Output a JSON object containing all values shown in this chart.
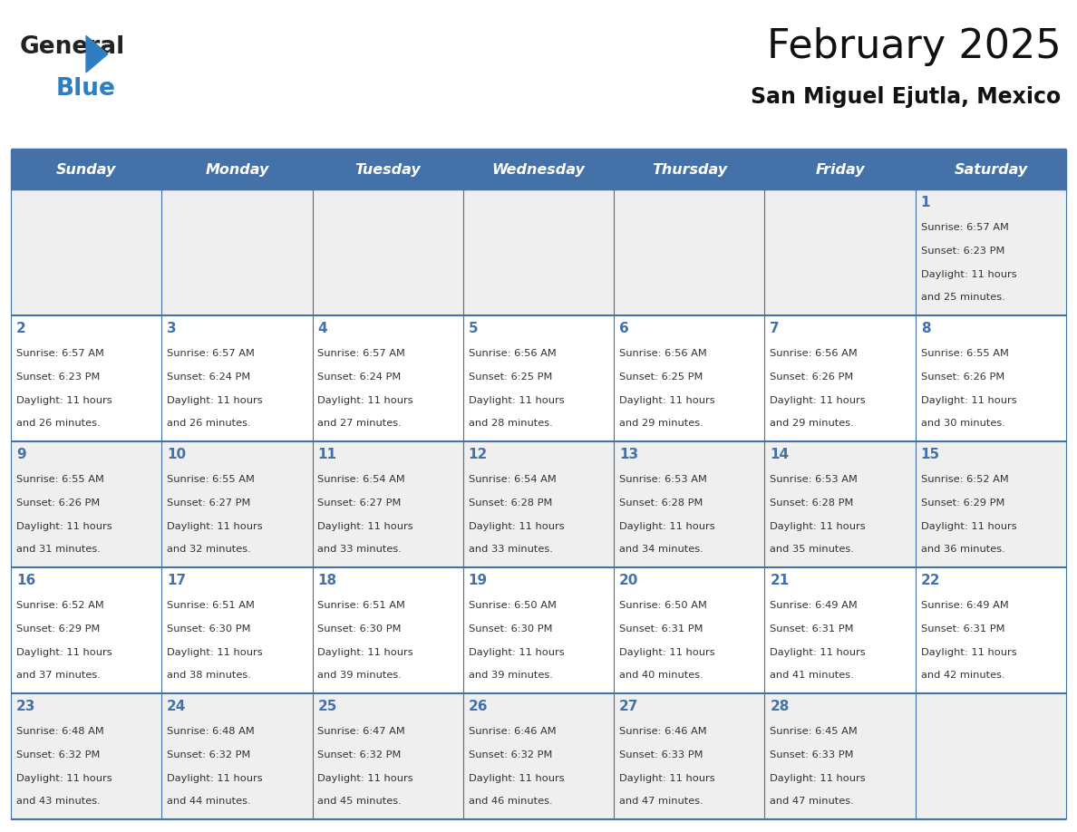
{
  "title": "February 2025",
  "subtitle": "San Miguel Ejutla, Mexico",
  "header_color": "#4472a8",
  "header_text_color": "#ffffff",
  "day_names": [
    "Sunday",
    "Monday",
    "Tuesday",
    "Wednesday",
    "Thursday",
    "Friday",
    "Saturday"
  ],
  "bg_color": "#ffffff",
  "cell_bg_even": "#efefef",
  "cell_bg_odd": "#ffffff",
  "border_color": "#4472a8",
  "number_color": "#4472a8",
  "text_color": "#333333",
  "days": [
    {
      "day": 1,
      "col": 6,
      "row": 0,
      "sunrise": "6:57 AM",
      "sunset": "6:23 PM",
      "daylight": "11 hours and 25 minutes."
    },
    {
      "day": 2,
      "col": 0,
      "row": 1,
      "sunrise": "6:57 AM",
      "sunset": "6:23 PM",
      "daylight": "11 hours and 26 minutes."
    },
    {
      "day": 3,
      "col": 1,
      "row": 1,
      "sunrise": "6:57 AM",
      "sunset": "6:24 PM",
      "daylight": "11 hours and 26 minutes."
    },
    {
      "day": 4,
      "col": 2,
      "row": 1,
      "sunrise": "6:57 AM",
      "sunset": "6:24 PM",
      "daylight": "11 hours and 27 minutes."
    },
    {
      "day": 5,
      "col": 3,
      "row": 1,
      "sunrise": "6:56 AM",
      "sunset": "6:25 PM",
      "daylight": "11 hours and 28 minutes."
    },
    {
      "day": 6,
      "col": 4,
      "row": 1,
      "sunrise": "6:56 AM",
      "sunset": "6:25 PM",
      "daylight": "11 hours and 29 minutes."
    },
    {
      "day": 7,
      "col": 5,
      "row": 1,
      "sunrise": "6:56 AM",
      "sunset": "6:26 PM",
      "daylight": "11 hours and 29 minutes."
    },
    {
      "day": 8,
      "col": 6,
      "row": 1,
      "sunrise": "6:55 AM",
      "sunset": "6:26 PM",
      "daylight": "11 hours and 30 minutes."
    },
    {
      "day": 9,
      "col": 0,
      "row": 2,
      "sunrise": "6:55 AM",
      "sunset": "6:26 PM",
      "daylight": "11 hours and 31 minutes."
    },
    {
      "day": 10,
      "col": 1,
      "row": 2,
      "sunrise": "6:55 AM",
      "sunset": "6:27 PM",
      "daylight": "11 hours and 32 minutes."
    },
    {
      "day": 11,
      "col": 2,
      "row": 2,
      "sunrise": "6:54 AM",
      "sunset": "6:27 PM",
      "daylight": "11 hours and 33 minutes."
    },
    {
      "day": 12,
      "col": 3,
      "row": 2,
      "sunrise": "6:54 AM",
      "sunset": "6:28 PM",
      "daylight": "11 hours and 33 minutes."
    },
    {
      "day": 13,
      "col": 4,
      "row": 2,
      "sunrise": "6:53 AM",
      "sunset": "6:28 PM",
      "daylight": "11 hours and 34 minutes."
    },
    {
      "day": 14,
      "col": 5,
      "row": 2,
      "sunrise": "6:53 AM",
      "sunset": "6:28 PM",
      "daylight": "11 hours and 35 minutes."
    },
    {
      "day": 15,
      "col": 6,
      "row": 2,
      "sunrise": "6:52 AM",
      "sunset": "6:29 PM",
      "daylight": "11 hours and 36 minutes."
    },
    {
      "day": 16,
      "col": 0,
      "row": 3,
      "sunrise": "6:52 AM",
      "sunset": "6:29 PM",
      "daylight": "11 hours and 37 minutes."
    },
    {
      "day": 17,
      "col": 1,
      "row": 3,
      "sunrise": "6:51 AM",
      "sunset": "6:30 PM",
      "daylight": "11 hours and 38 minutes."
    },
    {
      "day": 18,
      "col": 2,
      "row": 3,
      "sunrise": "6:51 AM",
      "sunset": "6:30 PM",
      "daylight": "11 hours and 39 minutes."
    },
    {
      "day": 19,
      "col": 3,
      "row": 3,
      "sunrise": "6:50 AM",
      "sunset": "6:30 PM",
      "daylight": "11 hours and 39 minutes."
    },
    {
      "day": 20,
      "col": 4,
      "row": 3,
      "sunrise": "6:50 AM",
      "sunset": "6:31 PM",
      "daylight": "11 hours and 40 minutes."
    },
    {
      "day": 21,
      "col": 5,
      "row": 3,
      "sunrise": "6:49 AM",
      "sunset": "6:31 PM",
      "daylight": "11 hours and 41 minutes."
    },
    {
      "day": 22,
      "col": 6,
      "row": 3,
      "sunrise": "6:49 AM",
      "sunset": "6:31 PM",
      "daylight": "11 hours and 42 minutes."
    },
    {
      "day": 23,
      "col": 0,
      "row": 4,
      "sunrise": "6:48 AM",
      "sunset": "6:32 PM",
      "daylight": "11 hours and 43 minutes."
    },
    {
      "day": 24,
      "col": 1,
      "row": 4,
      "sunrise": "6:48 AM",
      "sunset": "6:32 PM",
      "daylight": "11 hours and 44 minutes."
    },
    {
      "day": 25,
      "col": 2,
      "row": 4,
      "sunrise": "6:47 AM",
      "sunset": "6:32 PM",
      "daylight": "11 hours and 45 minutes."
    },
    {
      "day": 26,
      "col": 3,
      "row": 4,
      "sunrise": "6:46 AM",
      "sunset": "6:32 PM",
      "daylight": "11 hours and 46 minutes."
    },
    {
      "day": 27,
      "col": 4,
      "row": 4,
      "sunrise": "6:46 AM",
      "sunset": "6:33 PM",
      "daylight": "11 hours and 47 minutes."
    },
    {
      "day": 28,
      "col": 5,
      "row": 4,
      "sunrise": "6:45 AM",
      "sunset": "6:33 PM",
      "daylight": "11 hours and 47 minutes."
    }
  ],
  "logo_text1": "General",
  "logo_text2": "Blue",
  "logo_color1": "#222222",
  "logo_color2": "#2e7ec1"
}
